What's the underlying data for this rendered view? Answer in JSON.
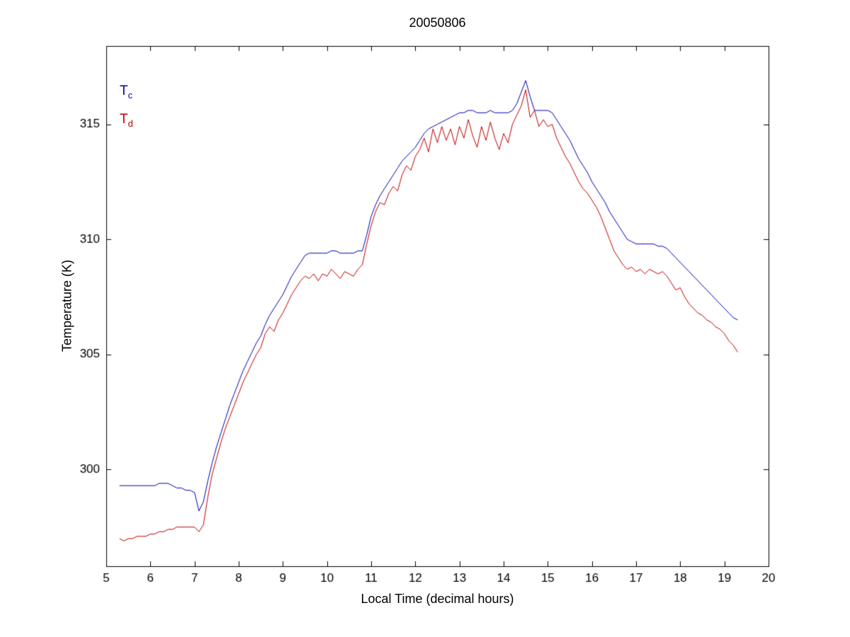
{
  "figure": {
    "background": "#ffffff",
    "axes_color": "#000000"
  },
  "chart_data": {
    "type": "line",
    "title": "20050806",
    "xlabel": "Local Time (decimal hours)",
    "ylabel": "Temperature (K)",
    "xlim": [
      5,
      20
    ],
    "ylim": [
      295.8,
      318.4
    ],
    "xticks": [
      5,
      6,
      7,
      8,
      9,
      10,
      11,
      12,
      13,
      14,
      15,
      16,
      17,
      18,
      19,
      20
    ],
    "yticks": [
      300,
      305,
      310,
      315
    ],
    "grid": false,
    "legend_position": "top-left-inside",
    "x": [
      5.3,
      5.4,
      5.5,
      5.6,
      5.7,
      5.8,
      5.9,
      6.0,
      6.1,
      6.2,
      6.3,
      6.4,
      6.5,
      6.6,
      6.7,
      6.8,
      6.9,
      7.0,
      7.1,
      7.2,
      7.3,
      7.4,
      7.5,
      7.6,
      7.7,
      7.8,
      7.9,
      8.0,
      8.1,
      8.2,
      8.3,
      8.4,
      8.5,
      8.6,
      8.7,
      8.8,
      8.9,
      9.0,
      9.1,
      9.2,
      9.3,
      9.4,
      9.5,
      9.6,
      9.7,
      9.8,
      9.9,
      10.0,
      10.1,
      10.2,
      10.3,
      10.4,
      10.5,
      10.6,
      10.7,
      10.8,
      10.9,
      11.0,
      11.1,
      11.2,
      11.3,
      11.4,
      11.5,
      11.6,
      11.7,
      11.8,
      11.9,
      12.0,
      12.1,
      12.2,
      12.3,
      12.4,
      12.5,
      12.6,
      12.7,
      12.8,
      12.9,
      13.0,
      13.1,
      13.2,
      13.3,
      13.4,
      13.5,
      13.6,
      13.7,
      13.8,
      13.9,
      14.0,
      14.1,
      14.2,
      14.3,
      14.4,
      14.5,
      14.6,
      14.7,
      14.8,
      14.9,
      15.0,
      15.1,
      15.2,
      15.3,
      15.4,
      15.5,
      15.6,
      15.7,
      15.8,
      15.9,
      16.0,
      16.1,
      16.2,
      16.3,
      16.4,
      16.5,
      16.6,
      16.7,
      16.8,
      16.9,
      17.0,
      17.1,
      17.2,
      17.3,
      17.4,
      17.5,
      17.6,
      17.7,
      17.8,
      17.9,
      18.0,
      18.1,
      18.2,
      18.3,
      18.4,
      18.5,
      18.6,
      18.7,
      18.8,
      18.9,
      19.0,
      19.1,
      19.2,
      19.3
    ],
    "series": [
      {
        "name": "T_c",
        "legend_main": "T",
        "legend_sub": "c",
        "color": "#0000b0",
        "values": [
          299.3,
          299.3,
          299.3,
          299.3,
          299.3,
          299.3,
          299.3,
          299.3,
          299.3,
          299.4,
          299.4,
          299.4,
          299.3,
          299.2,
          299.2,
          299.1,
          299.1,
          299.0,
          298.2,
          298.6,
          299.5,
          300.3,
          301.0,
          301.6,
          302.2,
          302.8,
          303.3,
          303.8,
          304.3,
          304.7,
          305.1,
          305.5,
          305.8,
          306.3,
          306.7,
          307.0,
          307.3,
          307.6,
          308.0,
          308.4,
          308.7,
          309.0,
          309.3,
          309.4,
          309.4,
          309.4,
          309.4,
          309.4,
          309.5,
          309.5,
          309.4,
          309.4,
          309.4,
          309.4,
          309.5,
          309.5,
          310.2,
          311.0,
          311.5,
          311.9,
          312.2,
          312.5,
          312.8,
          313.1,
          313.4,
          313.6,
          313.8,
          314.0,
          314.3,
          314.6,
          314.8,
          314.9,
          315.0,
          315.1,
          315.2,
          315.3,
          315.4,
          315.5,
          315.5,
          315.6,
          315.6,
          315.5,
          315.5,
          315.5,
          315.6,
          315.5,
          315.5,
          315.5,
          315.5,
          315.6,
          315.9,
          316.4,
          316.9,
          316.2,
          315.6,
          315.6,
          315.6,
          315.6,
          315.5,
          315.2,
          314.9,
          314.6,
          314.3,
          313.9,
          313.5,
          313.2,
          312.9,
          312.5,
          312.2,
          311.9,
          311.6,
          311.2,
          310.9,
          310.6,
          310.3,
          310.0,
          309.9,
          309.8,
          309.8,
          309.8,
          309.8,
          309.8,
          309.7,
          309.7,
          309.6,
          309.4,
          309.2,
          309.0,
          308.8,
          308.6,
          308.4,
          308.2,
          308.0,
          307.8,
          307.6,
          307.4,
          307.2,
          307.0,
          306.8,
          306.6,
          306.5
        ]
      },
      {
        "name": "T_d",
        "legend_main": "T",
        "legend_sub": "d",
        "color": "#c00000",
        "values": [
          297.0,
          296.9,
          297.0,
          297.0,
          297.1,
          297.1,
          297.1,
          297.2,
          297.2,
          297.3,
          297.3,
          297.4,
          297.4,
          297.5,
          297.5,
          297.5,
          297.5,
          297.5,
          297.3,
          297.6,
          298.8,
          299.8,
          300.5,
          301.2,
          301.8,
          302.3,
          302.8,
          303.3,
          303.8,
          304.2,
          304.6,
          305.0,
          305.3,
          305.9,
          306.2,
          306.0,
          306.5,
          306.8,
          307.2,
          307.6,
          307.9,
          308.2,
          308.4,
          308.3,
          308.5,
          308.2,
          308.5,
          308.4,
          308.7,
          308.5,
          308.3,
          308.6,
          308.5,
          308.4,
          308.7,
          308.9,
          309.8,
          310.6,
          311.2,
          311.6,
          311.5,
          312.0,
          312.3,
          312.1,
          312.8,
          313.2,
          313.0,
          313.6,
          313.9,
          314.4,
          313.8,
          314.8,
          314.2,
          314.9,
          314.3,
          314.8,
          314.1,
          314.9,
          314.4,
          315.2,
          314.5,
          314.0,
          314.9,
          314.3,
          315.1,
          314.4,
          313.9,
          314.6,
          314.2,
          315.0,
          315.4,
          315.8,
          316.5,
          315.3,
          315.6,
          314.9,
          315.2,
          314.9,
          315.0,
          314.4,
          314.0,
          313.6,
          313.3,
          312.9,
          312.5,
          312.2,
          312.0,
          311.7,
          311.4,
          311.0,
          310.5,
          310.0,
          309.5,
          309.2,
          308.9,
          308.7,
          308.8,
          308.6,
          308.7,
          308.5,
          308.7,
          308.6,
          308.5,
          308.6,
          308.4,
          308.1,
          307.8,
          307.9,
          307.5,
          307.2,
          307.0,
          306.8,
          306.7,
          306.5,
          306.4,
          306.2,
          306.1,
          305.9,
          305.6,
          305.4,
          305.1
        ]
      }
    ]
  }
}
